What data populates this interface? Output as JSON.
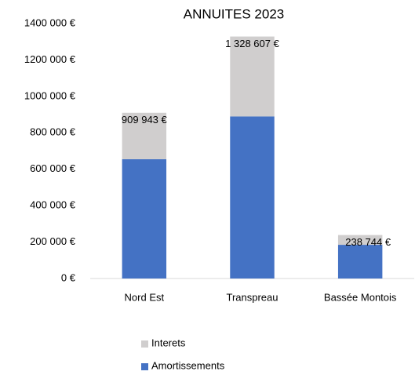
{
  "chart_data": {
    "type": "stacked_bar",
    "title": "ANNUITES 2023",
    "categories": [
      "Nord Est",
      "Transpreau",
      "Bassée Montois"
    ],
    "series": [
      {
        "name": "Amortissements",
        "color": "#4472c4",
        "values": [
          655000,
          890000,
          185000
        ]
      },
      {
        "name": "Interets",
        "color": "#d0cece",
        "values": [
          254943,
          438607,
          53744
        ]
      }
    ],
    "totals": {
      "values": [
        909943,
        1328607,
        238744
      ],
      "value_labels": [
        "909 943 €",
        "1 328 607 €",
        "238 744 €"
      ]
    },
    "ylim": [
      0,
      1400000
    ],
    "yticks": [
      {
        "value": 0,
        "label": "0 €"
      },
      {
        "value": 200000,
        "label": "200 000 €"
      },
      {
        "value": 400000,
        "label": "400 000 €"
      },
      {
        "value": 600000,
        "label": "600 000 €"
      },
      {
        "value": 800000,
        "label": "800 000 €"
      },
      {
        "value": 1000000,
        "label": "1000 000 €"
      },
      {
        "value": 1200000,
        "label": "1200 000 €"
      },
      {
        "value": 1400000,
        "label": "1400 000 €"
      }
    ],
    "grid": false,
    "legend": "bottom"
  }
}
